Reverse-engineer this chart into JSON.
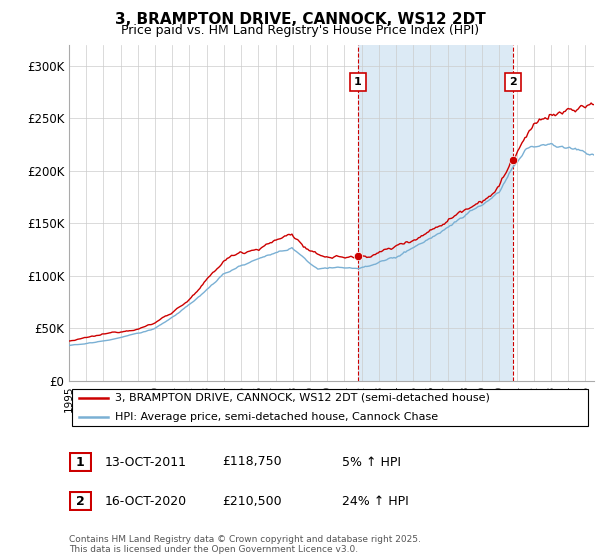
{
  "title": "3, BRAMPTON DRIVE, CANNOCK, WS12 2DT",
  "subtitle": "Price paid vs. HM Land Registry's House Price Index (HPI)",
  "legend_line1": "3, BRAMPTON DRIVE, CANNOCK, WS12 2DT (semi-detached house)",
  "legend_line2": "HPI: Average price, semi-detached house, Cannock Chase",
  "annotation1_label": "1",
  "annotation1_date": "13-OCT-2011",
  "annotation1_price": "£118,750",
  "annotation1_hpi": "5% ↑ HPI",
  "annotation1_year": 2011.79,
  "annotation1_value": 118750,
  "annotation2_label": "2",
  "annotation2_date": "16-OCT-2020",
  "annotation2_price": "£210,500",
  "annotation2_hpi": "24% ↑ HPI",
  "annotation2_year": 2020.79,
  "annotation2_value": 210500,
  "ylabel_ticks": [
    "£0",
    "£50K",
    "£100K",
    "£150K",
    "£200K",
    "£250K",
    "£300K"
  ],
  "ytick_values": [
    0,
    50000,
    100000,
    150000,
    200000,
    250000,
    300000
  ],
  "ylim": [
    0,
    320000
  ],
  "xlim_start": 1995,
  "xlim_end": 2025.5,
  "red_color": "#cc0000",
  "blue_color": "#7ab0d4",
  "shade_color": "#dceaf5",
  "dashed_color": "#cc0000",
  "background_color": "#ffffff",
  "grid_color": "#cccccc",
  "footnote": "Contains HM Land Registry data © Crown copyright and database right 2025.\nThis data is licensed under the Open Government Licence v3.0."
}
